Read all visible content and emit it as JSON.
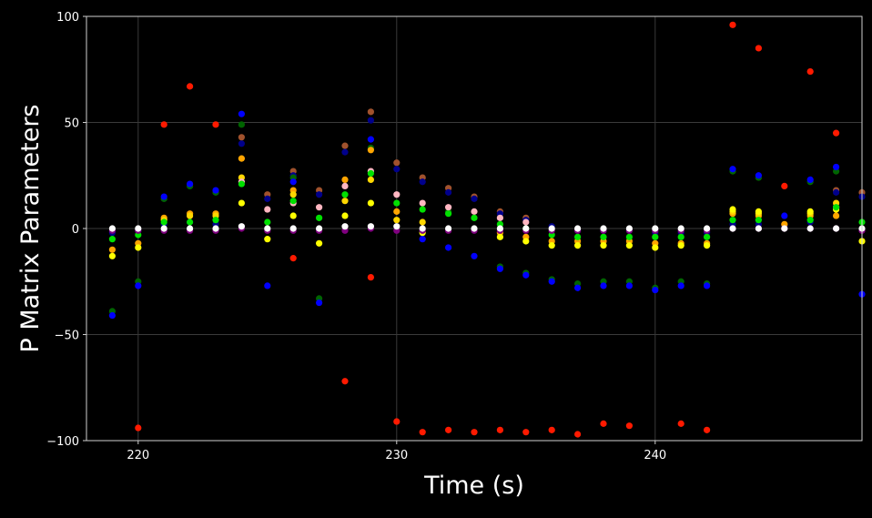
{
  "chart_data": {
    "type": "scatter",
    "title": "",
    "xlabel": "Time (s)",
    "ylabel": "P Matrix Parameters",
    "xlim": [
      218,
      248
    ],
    "ylim": [
      -100,
      100
    ],
    "xticks": [
      "220",
      "230",
      "240"
    ],
    "xtick_values": [
      220,
      230,
      240
    ],
    "yticks": [
      "−100",
      "−50",
      "0",
      "50",
      "100"
    ],
    "ytick_values": [
      -100,
      -50,
      0,
      50,
      100
    ],
    "grid": true,
    "background": "#000000",
    "x": [
      219,
      220,
      221,
      222,
      223,
      224,
      225,
      226,
      227,
      228,
      229,
      230,
      231,
      232,
      233,
      234,
      235,
      236,
      237,
      238,
      239,
      240,
      241,
      242,
      243,
      244,
      245,
      246,
      247,
      248
    ],
    "series": [
      {
        "color": "#ff1a00",
        "values": [
          null,
          -94,
          49,
          67,
          49,
          null,
          null,
          -14,
          null,
          -72,
          -23,
          -91,
          -96,
          -95,
          -96,
          -95,
          -96,
          -95,
          -97,
          -92,
          -93,
          null,
          -92,
          -95,
          96,
          85,
          20,
          74,
          45,
          null
        ]
      },
      {
        "color": "#a0522d",
        "values": [
          null,
          null,
          null,
          null,
          null,
          43,
          16,
          27,
          18,
          39,
          55,
          31,
          24,
          19,
          15,
          8,
          5,
          null,
          null,
          null,
          null,
          null,
          null,
          null,
          null,
          null,
          null,
          null,
          18,
          17
        ]
      },
      {
        "color": "#00008b",
        "values": [
          -2,
          -1,
          2,
          3,
          2,
          40,
          14,
          25,
          16,
          36,
          51,
          28,
          22,
          17,
          14,
          7,
          4,
          1,
          -1,
          -1,
          -1,
          -2,
          -2,
          -2,
          2,
          2,
          1,
          3,
          17,
          15
        ]
      },
      {
        "color": "#006400",
        "values": [
          -39,
          -25,
          14,
          20,
          17,
          49,
          null,
          24,
          -33,
          null,
          38,
          null,
          null,
          8,
          null,
          -18,
          -21,
          -24,
          -26,
          -25,
          -25,
          -28,
          -25,
          -26,
          27,
          24,
          null,
          22,
          27,
          null
        ]
      },
      {
        "color": "#0000ff",
        "values": [
          -41,
          -27,
          15,
          21,
          18,
          54,
          -27,
          22,
          -35,
          null,
          42,
          null,
          -5,
          -9,
          -13,
          -19,
          -22,
          -25,
          -28,
          -27,
          -27,
          -29,
          -27,
          -27,
          28,
          25,
          6,
          23,
          29,
          -31
        ]
      },
      {
        "color": "#ffa500",
        "values": [
          -10,
          -7,
          5,
          7,
          7,
          33,
          null,
          18,
          null,
          23,
          37,
          8,
          null,
          null,
          null,
          -2,
          -4,
          -6,
          -6,
          -6,
          -6,
          -7,
          -7,
          -7,
          7,
          6,
          2,
          6,
          6,
          null
        ]
      },
      {
        "color": "#ffd700",
        "values": [
          null,
          null,
          4,
          6,
          6,
          24,
          null,
          16,
          null,
          13,
          23,
          4,
          3,
          null,
          null,
          null,
          null,
          null,
          null,
          null,
          null,
          null,
          null,
          null,
          8,
          7,
          null,
          7,
          12,
          null
        ]
      },
      {
        "color": "#ffff00",
        "values": [
          -13,
          -9,
          null,
          null,
          null,
          12,
          -5,
          6,
          -7,
          6,
          12,
          null,
          -2,
          null,
          null,
          -4,
          -6,
          -8,
          -8,
          -8,
          -8,
          -9,
          -8,
          -8,
          9,
          8,
          null,
          8,
          9,
          -6
        ]
      },
      {
        "color": "#ffb6c1",
        "values": [
          null,
          null,
          null,
          null,
          null,
          22,
          9,
          12,
          10,
          20,
          27,
          16,
          12,
          10,
          8,
          5,
          3,
          null,
          null,
          null,
          null,
          null,
          null,
          null,
          null,
          null,
          null,
          null,
          10,
          null
        ]
      },
      {
        "color": "#00e000",
        "values": [
          -5,
          -3,
          3,
          3,
          4,
          21,
          3,
          13,
          5,
          16,
          26,
          12,
          9,
          7,
          5,
          2,
          0,
          -3,
          -4,
          -4,
          -4,
          -4,
          -4,
          -4,
          4,
          4,
          null,
          4,
          10,
          3
        ]
      },
      {
        "color": "#800080",
        "values": [
          -1,
          -1,
          -1,
          -1,
          -1,
          0,
          -1,
          -1,
          -1,
          -1,
          0,
          -1,
          -1,
          -1,
          -1,
          -1,
          -1,
          -1,
          -1,
          -1,
          -1,
          -1,
          -1,
          -1,
          0,
          0,
          0,
          0,
          0,
          -1
        ]
      },
      {
        "color": "#ffffff",
        "values": [
          0,
          0,
          0,
          0,
          0,
          1,
          0,
          0,
          0,
          1,
          1,
          1,
          0,
          0,
          0,
          0,
          0,
          0,
          0,
          0,
          0,
          0,
          0,
          0,
          0,
          0,
          0,
          0,
          0,
          0
        ]
      }
    ]
  }
}
